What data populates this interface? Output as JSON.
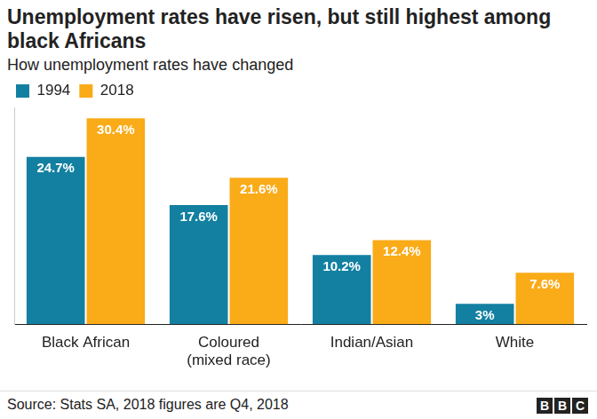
{
  "chart_data": {
    "type": "bar",
    "title": "Unemployment rates have risen, but still highest among black Africans",
    "subtitle": "How unemployment rates have changed",
    "categories": [
      "Black African",
      "Coloured (mixed race)",
      "Indian/Asian",
      "White"
    ],
    "series": [
      {
        "name": "1994",
        "color": "#1380a1",
        "values": [
          24.7,
          17.6,
          10.2,
          3
        ],
        "value_labels": [
          "24.7%",
          "17.6%",
          "10.2%",
          "3%"
        ]
      },
      {
        "name": "2018",
        "color": "#faab18",
        "values": [
          30.4,
          21.6,
          12.4,
          7.6
        ],
        "value_labels": [
          "30.4%",
          "21.6%",
          "12.4%",
          "7.6%"
        ]
      }
    ],
    "ylim": [
      0,
      32
    ],
    "grid": false,
    "legend": "top-left",
    "data_labels": true,
    "tick_labels": "x",
    "source": "Source: Stats SA, 2018 figures are Q4, 2018",
    "logo": "BBC"
  }
}
